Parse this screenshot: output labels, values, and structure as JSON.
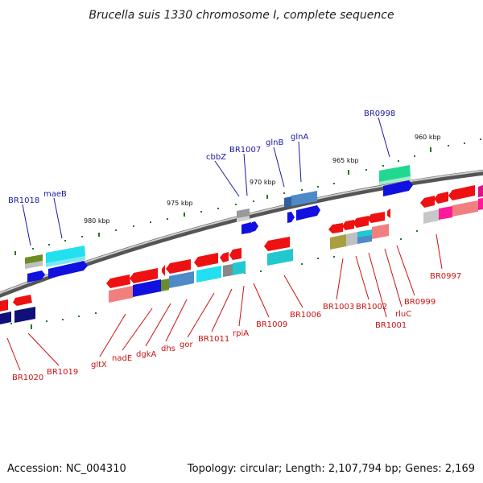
{
  "title": "Brucella suis 1330 chromosome I, complete sequence",
  "footer": {
    "accession": "Accession: NC_004310",
    "summary": "Topology: circular; Length: 2,107,794 bp; Genes: 2,169"
  },
  "scale_labels": [
    "980 kbp",
    "975 kbp",
    "970 kbp",
    "965 kbp",
    "960 kbp"
  ],
  "colors": {
    "backbone": "#777777",
    "ticks": "#1f7a1f",
    "label_blue": "#1a1aa0",
    "label_red": "#cc1111"
  },
  "genes_top": [
    {
      "label": "BR1018",
      "color": "#1a1aa0"
    },
    {
      "label": "maeB",
      "color": "#1a1aa0"
    },
    {
      "label": "cbbZ",
      "color": "#1a1aa0"
    },
    {
      "label": "BR1007",
      "color": "#1a1aa0"
    },
    {
      "label": "glnB",
      "color": "#1a1aa0"
    },
    {
      "label": "glnA",
      "color": "#1a1aa0"
    },
    {
      "label": "BR0998",
      "color": "#1a1aa0"
    }
  ],
  "genes_bottom": [
    {
      "label": "BR1020"
    },
    {
      "label": "BR1019"
    },
    {
      "label": "gltX"
    },
    {
      "label": "nadE"
    },
    {
      "label": "dgkA"
    },
    {
      "label": "dhs"
    },
    {
      "label": "gor"
    },
    {
      "label": "BR1011"
    },
    {
      "label": "rpiA"
    },
    {
      "label": "BR1009"
    },
    {
      "label": "BR1006"
    },
    {
      "label": "BR1003"
    },
    {
      "label": "BR1002"
    },
    {
      "label": "BR1001"
    },
    {
      "label": "rluC"
    },
    {
      "label": "BR0999"
    },
    {
      "label": "BR0997"
    }
  ]
}
